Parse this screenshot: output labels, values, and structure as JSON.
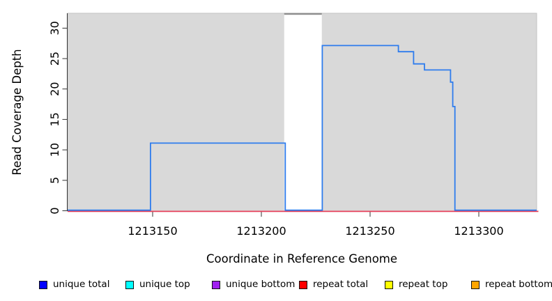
{
  "chart_data": {
    "type": "line",
    "subtype": "step-coverage",
    "title": "",
    "xlabel": "Coordinate in Reference Genome",
    "ylabel": "Read Coverage Depth",
    "xlim": [
      1213110.9,
      1213326.6
    ],
    "ylim": [
      0,
      32.4
    ],
    "x_ticks": [
      1213150,
      1213200,
      1213250,
      1213300
    ],
    "y_ticks": [
      0,
      5,
      10,
      15,
      20,
      25,
      30
    ],
    "grid": false,
    "legend_position": "bottom",
    "plot_background": "#d9d9d9",
    "plot_border": "#c4c4c4",
    "masked_region": {
      "start": 1213210.5,
      "end": 1213227.8,
      "fill": "#ffffff",
      "cap_color": "#8f8f8f"
    },
    "series": [
      {
        "name": "unique total",
        "type": "step",
        "line_color": "#2e7ced",
        "segments": [
          {
            "start": 1213110.9,
            "end": 1213149,
            "depth": 0
          },
          {
            "start": 1213149,
            "end": 1213211,
            "depth": 11
          },
          {
            "start": 1213211,
            "end": 1213228,
            "depth": 0
          },
          {
            "start": 1213228,
            "end": 1213263,
            "depth": 27
          },
          {
            "start": 1213263,
            "end": 1213270,
            "depth": 26
          },
          {
            "start": 1213270,
            "end": 1213275,
            "depth": 24
          },
          {
            "start": 1213275,
            "end": 1213287,
            "depth": 23
          },
          {
            "start": 1213287,
            "end": 1213288,
            "depth": 21
          },
          {
            "start": 1213288,
            "end": 1213289,
            "depth": 17
          },
          {
            "start": 1213289,
            "end": 1213326.6,
            "depth": 0
          }
        ]
      },
      {
        "name": "repeat total",
        "type": "constant",
        "line_color": "#e6405a",
        "value": 0
      }
    ],
    "legend": [
      {
        "label": "unique total",
        "color": "#0000ff"
      },
      {
        "label": "unique top",
        "color": "#00ffff"
      },
      {
        "label": "unique bottom",
        "color": "#a020f0"
      },
      {
        "label": "repeat total",
        "color": "#ff0000"
      },
      {
        "label": "repeat top",
        "color": "#ffff00"
      },
      {
        "label": "repeat bottom",
        "color": "#ffa500"
      }
    ]
  }
}
